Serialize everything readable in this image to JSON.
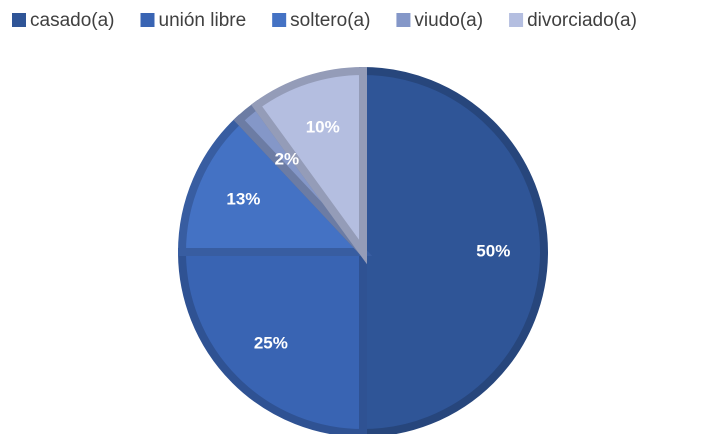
{
  "chart_data": {
    "type": "pie",
    "categories": [
      "casado(a)",
      "unión libre",
      "soltero(a)",
      "viudo(a)",
      "divorciado(a)"
    ],
    "values": [
      50,
      25,
      13,
      2,
      10
    ],
    "value_labels": [
      "50%",
      "25%",
      "13%",
      "2%",
      "10%"
    ],
    "colors": [
      "#2f5597",
      "#3964b3",
      "#4472c4",
      "#8497c8",
      "#b4bee0"
    ],
    "legend": "top"
  }
}
